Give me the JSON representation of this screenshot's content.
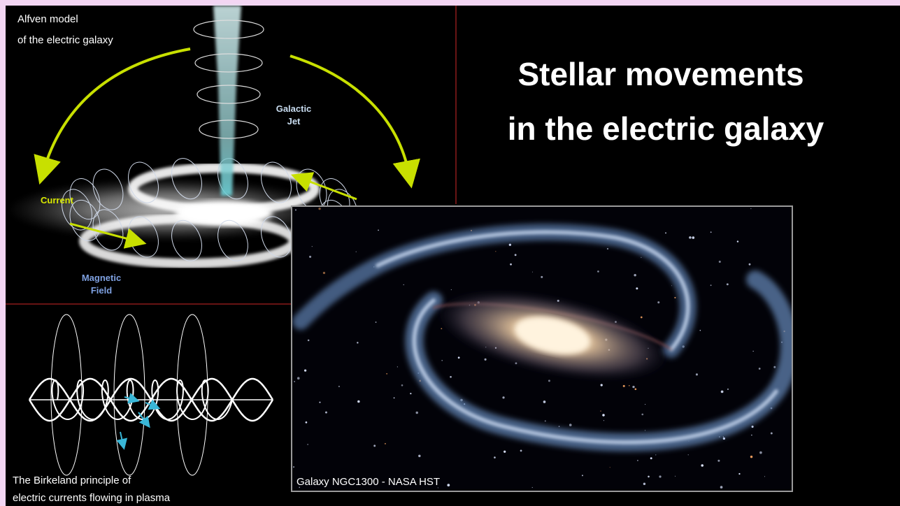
{
  "title": [
    "Stellar movements",
    "in the electric galaxy"
  ],
  "alfven": {
    "caption": [
      "Alfven model",
      "of the electric galaxy"
    ],
    "jet_label": [
      "Galactic",
      "Jet"
    ],
    "current_label": "Current",
    "field_label": [
      "Magnetic",
      "Field"
    ]
  },
  "birkeland": {
    "caption": [
      "The Birkeland principle of",
      "electric currents flowing in plasma"
    ]
  },
  "photo": {
    "caption": "Galaxy NGC1300 - NASA HST"
  }
}
